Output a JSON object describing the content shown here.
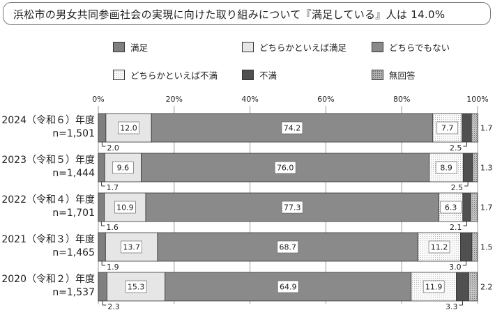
{
  "chart_data": {
    "type": "bar",
    "orientation": "horizontal",
    "stacked": true,
    "title": "浜松市の男女共同参画社会の実現に向けた取り組みについて『満足している』人は 14.0%",
    "xlabel": "",
    "ylabel": "",
    "xlim": [
      0,
      100
    ],
    "x_ticks": [
      "0%",
      "20%",
      "40%",
      "60%",
      "80%",
      "100%"
    ],
    "grid": true,
    "legend": "top",
    "categories": [
      {
        "year": "2024（令和６）年度",
        "n": "n=1,501"
      },
      {
        "year": "2023（令和５）年度",
        "n": "n=1,444"
      },
      {
        "year": "2022（令和４）年度",
        "n": "n=1,701"
      },
      {
        "year": "2021（令和３）年度",
        "n": "n=1,465"
      },
      {
        "year": "2020（令和２）年度",
        "n": "n=1,537"
      }
    ],
    "series": [
      {
        "name": "満足",
        "color": "#808080",
        "values": [
          2.0,
          1.7,
          1.6,
          1.9,
          2.3
        ]
      },
      {
        "name": "どちらかといえば満足",
        "color": "#e6e6e6",
        "values": [
          12.0,
          9.6,
          10.9,
          13.7,
          15.3
        ]
      },
      {
        "name": "どちらでもない",
        "color": "#8a8a8a",
        "values": [
          74.2,
          76.0,
          77.3,
          68.7,
          64.9
        ]
      },
      {
        "name": "どちらかといえば不満",
        "color": "#f4f4f4",
        "values": [
          7.7,
          8.9,
          6.3,
          11.2,
          11.9
        ]
      },
      {
        "name": "不満",
        "color": "#505050",
        "values": [
          2.5,
          2.5,
          2.1,
          3.0,
          3.3
        ]
      },
      {
        "name": "無回答",
        "color": "#b0b0b0",
        "values": [
          1.7,
          1.3,
          1.7,
          1.5,
          2.2
        ]
      }
    ]
  }
}
